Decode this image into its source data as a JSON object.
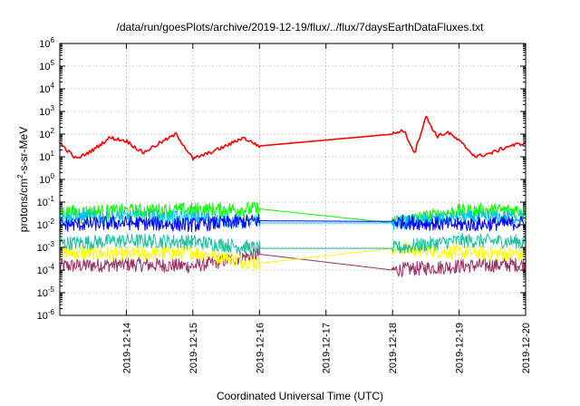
{
  "chart_data": {
    "type": "line",
    "title": "/data/run/goesPlots/archive/2019-12-19/flux/../flux/7daysEarthDataFluxes.txt",
    "xlabel": "Coordinated Universal Time (UTC)",
    "ylabel_main": "protons/cm",
    "ylabel_sup": "2",
    "ylabel_tail": "-s-sr-MeV",
    "yscale": "log",
    "grid": true,
    "xlim": [
      "2019-12-13T00:00",
      "2019-12-20T00:00"
    ],
    "x_tick_labels": [
      "2019-12-14",
      "2019-12-15",
      "2019-12-16",
      "2019-12-17",
      "2019-12-18",
      "2019-12-19",
      "2019-12-20"
    ],
    "y_tick_exponents": [
      "-6",
      "-5",
      "-4",
      "-3",
      "-2",
      "-1",
      "0",
      "1",
      "2",
      "3",
      "4",
      "5",
      "6"
    ],
    "y_tick_base": "10",
    "ylim": [
      1e-06,
      1000000.0
    ],
    "data_gap": [
      "2019-12-16T00:00",
      "2019-12-18T00:00"
    ],
    "series": [
      {
        "color": "#ff0000",
        "x": [
          "2019-12-13T00:00",
          "2019-12-13T06:00",
          "2019-12-13T12:00",
          "2019-12-13T18:00",
          "2019-12-14T00:00",
          "2019-12-14T06:00",
          "2019-12-14T12:00",
          "2019-12-14T18:00",
          "2019-12-15T00:00",
          "2019-12-15T06:00",
          "2019-12-15T12:00",
          "2019-12-15T18:00",
          "2019-12-16T00:00",
          "2019-12-18T00:00",
          "2019-12-18T04:00",
          "2019-12-18T08:00",
          "2019-12-18T12:00",
          "2019-12-18T16:00",
          "2019-12-18T20:00",
          "2019-12-19T00:00",
          "2019-12-19T06:00",
          "2019-12-19T12:00",
          "2019-12-19T18:00",
          "2019-12-20T00:00"
        ],
        "y": [
          40,
          8,
          20,
          70,
          50,
          15,
          40,
          100,
          8,
          15,
          30,
          70,
          30,
          100,
          150,
          15,
          600,
          80,
          120,
          50,
          10,
          15,
          30,
          40
        ]
      },
      {
        "color": "#00ff00",
        "x": [
          "2019-12-13T00:00",
          "2019-12-14T00:00",
          "2019-12-15T00:00",
          "2019-12-16T00:00",
          "2019-12-18T00:00",
          "2019-12-19T00:00",
          "2019-12-20T00:00"
        ],
        "y": [
          0.035,
          0.04,
          0.045,
          0.05,
          0.012,
          0.04,
          0.045
        ]
      },
      {
        "color": "#00bfff",
        "x": [
          "2019-12-13T00:00",
          "2019-12-14T00:00",
          "2019-12-15T00:00",
          "2019-12-16T00:00",
          "2019-12-18T00:00",
          "2019-12-19T00:00",
          "2019-12-20T00:00"
        ],
        "y": [
          0.02,
          0.022,
          0.02,
          0.012,
          0.012,
          0.02,
          0.022
        ]
      },
      {
        "color": "#0000ff",
        "x": [
          "2019-12-13T00:00",
          "2019-12-14T00:00",
          "2019-12-15T00:00",
          "2019-12-16T00:00",
          "2019-12-18T00:00",
          "2019-12-19T00:00",
          "2019-12-20T00:00"
        ],
        "y": [
          0.01,
          0.012,
          0.01,
          0.015,
          0.014,
          0.01,
          0.012
        ]
      },
      {
        "color": "#20c0a0",
        "x": [
          "2019-12-13T00:00",
          "2019-12-14T00:00",
          "2019-12-15T00:00",
          "2019-12-16T00:00",
          "2019-12-18T00:00",
          "2019-12-19T00:00",
          "2019-12-20T00:00"
        ],
        "y": [
          0.0015,
          0.002,
          0.0018,
          0.0009,
          0.0009,
          0.002,
          0.0018
        ]
      },
      {
        "color": "#ffff00",
        "x": [
          "2019-12-13T00:00",
          "2019-12-14T00:00",
          "2019-12-15T00:00",
          "2019-12-16T00:00",
          "2019-12-18T00:00",
          "2019-12-19T00:00",
          "2019-12-20T00:00"
        ],
        "y": [
          0.0006,
          0.0005,
          0.0006,
          0.0002,
          0.0009,
          0.0006,
          0.0005
        ]
      },
      {
        "color": "#993366",
        "x": [
          "2019-12-13T00:00",
          "2019-12-14T00:00",
          "2019-12-15T00:00",
          "2019-12-16T00:00",
          "2019-12-18T00:00",
          "2019-12-19T00:00",
          "2019-12-20T00:00"
        ],
        "y": [
          0.00015,
          0.00018,
          0.00015,
          0.0005,
          0.0001,
          0.00015,
          0.00018
        ]
      }
    ]
  }
}
